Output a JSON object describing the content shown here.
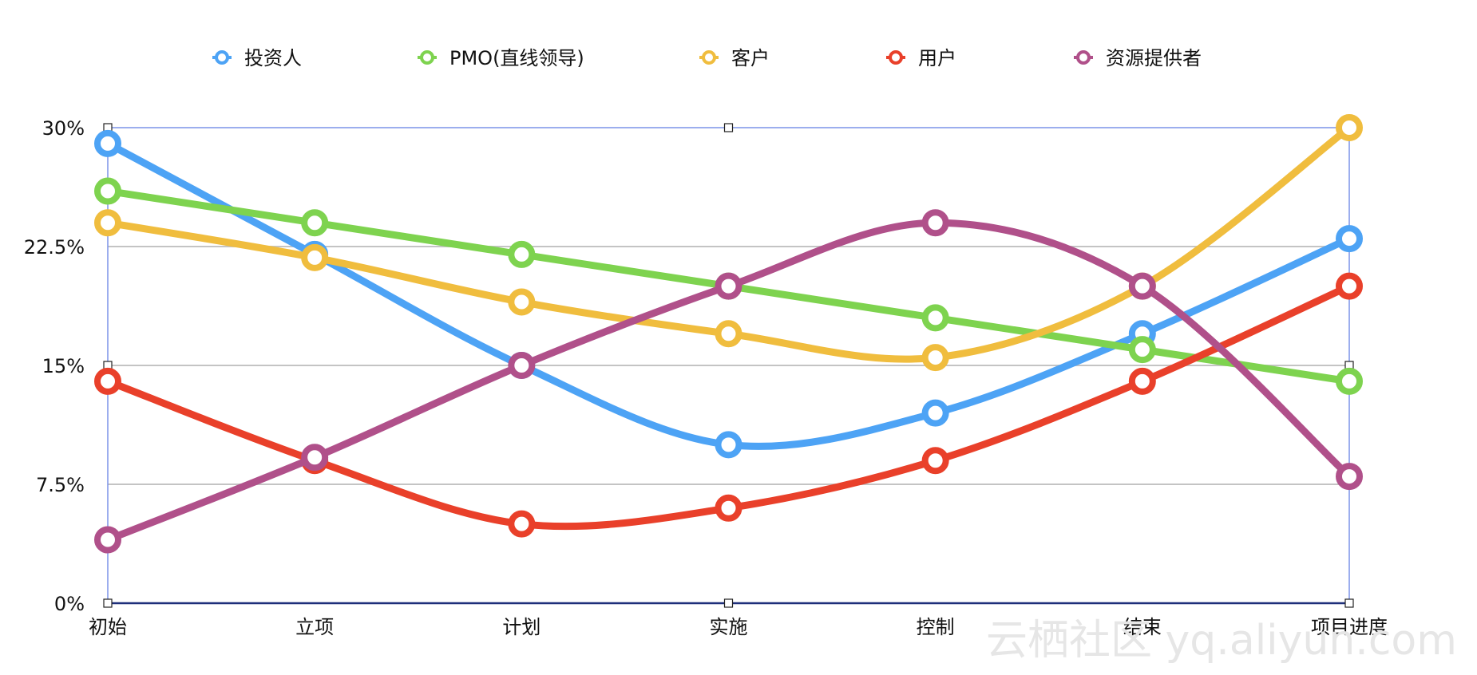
{
  "chart_data": {
    "type": "line",
    "smooth": true,
    "categories": [
      "初始",
      "立项",
      "计划",
      "实施",
      "控制",
      "结束",
      "项目进度"
    ],
    "y_ticks": [
      "0%",
      "7.5%",
      "15%",
      "22.5%",
      "30%"
    ],
    "ylim": [
      0,
      30
    ],
    "y_unit": "%",
    "grid": true,
    "legend_position": "top",
    "series": [
      {
        "name": "投资人",
        "color": "#4da3f5",
        "values": [
          29,
          22,
          15,
          10,
          12,
          17,
          23
        ]
      },
      {
        "name": "PMO(直线领导)",
        "color": "#7ed34f",
        "values": [
          26,
          24,
          22,
          20,
          18,
          16,
          14
        ]
      },
      {
        "name": "客户",
        "color": "#f0bd3e",
        "values": [
          24,
          21.8,
          19,
          17,
          15.5,
          20,
          30
        ]
      },
      {
        "name": "用户",
        "color": "#e9402a",
        "values": [
          14,
          9,
          5,
          6,
          9,
          14,
          20
        ]
      },
      {
        "name": "资源提供者",
        "color": "#b0508a",
        "values": [
          4,
          9.2,
          15,
          20,
          24,
          20,
          8
        ]
      }
    ]
  },
  "colors": {
    "axis_frame": "#7b93e8",
    "x_axis": "#1e2f7a",
    "grid": "#c4c4c4"
  },
  "watermark": "云栖社区 yq.aliyun.com"
}
